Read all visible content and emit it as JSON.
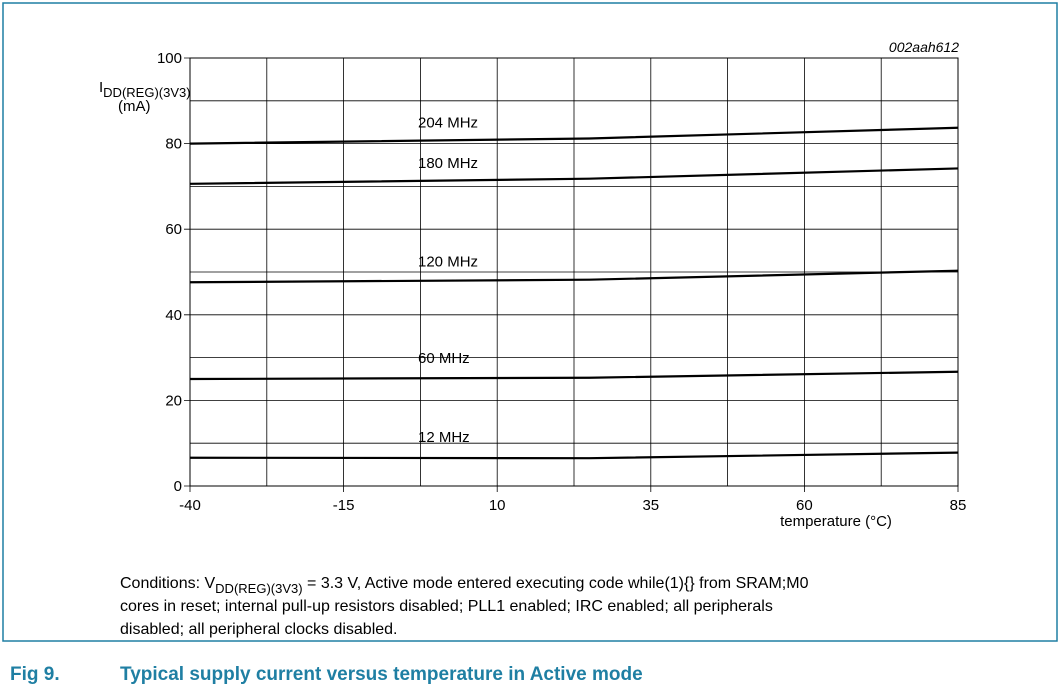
{
  "chart_data": {
    "type": "line",
    "figure_id": "002aah612",
    "y_label": {
      "main": "I",
      "sub": "DD(REG)(3V3)",
      "unit": "(mA)"
    },
    "x_label": "temperature (°C)",
    "x": [
      -40,
      25,
      85
    ],
    "series": [
      {
        "name": "204 MHz",
        "color": "#000000",
        "values": [
          80,
          81.2,
          83.7
        ]
      },
      {
        "name": "180 MHz",
        "color": "#000000",
        "values": [
          70.6,
          71.8,
          74.2
        ]
      },
      {
        "name": "120 MHz",
        "color": "#000000",
        "values": [
          47.6,
          48.2,
          50.3
        ]
      },
      {
        "name": "60 MHz",
        "color": "#000000",
        "values": [
          25,
          25.3,
          26.7
        ]
      },
      {
        "name": "12 MHz",
        "color": "#000000",
        "values": [
          6.6,
          6.5,
          7.8
        ]
      }
    ],
    "xlim": [
      -40,
      85
    ],
    "xticks": [
      -40,
      -15,
      10,
      35,
      60,
      85
    ],
    "ylim": [
      0,
      100
    ],
    "yticks": [
      0,
      20,
      40,
      60,
      80,
      100
    ],
    "grid": true
  },
  "conditions": {
    "prefix": "Conditions: V",
    "sub": "DD(REG)(3V3)",
    "line1_rest": " = 3.3 V, Active mode entered executing code while(1){} from SRAM;M0",
    "line2": "cores in reset; internal pull-up resistors disabled; PLL1 enabled; IRC enabled; all peripherals",
    "line3": "disabled; all peripheral clocks disabled."
  },
  "caption": {
    "number": "Fig 9.",
    "title": "Typical supply current versus temperature in Active mode"
  }
}
